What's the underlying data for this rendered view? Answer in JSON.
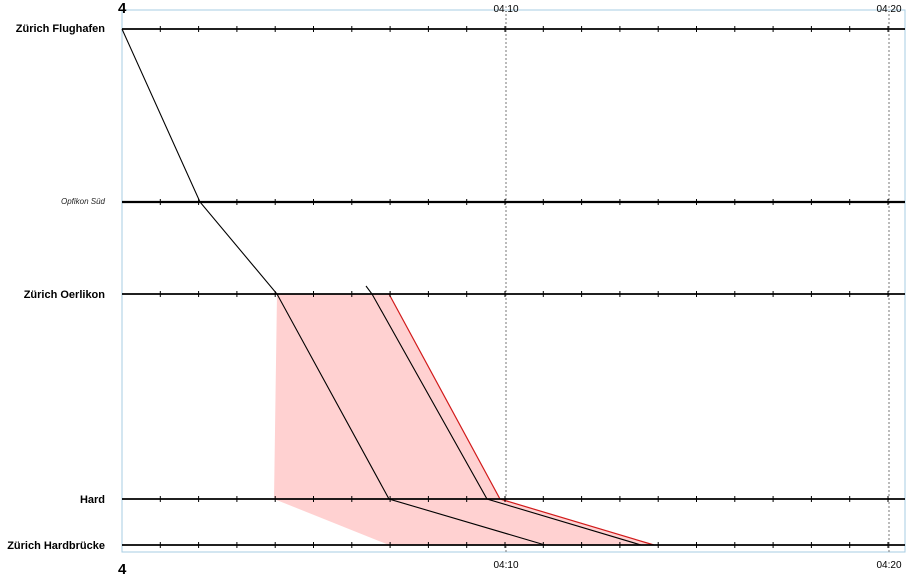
{
  "line_number": "4",
  "stations": [
    {
      "name": "Zürich Flughafen",
      "minor": false
    },
    {
      "name": "Opfikon Süd",
      "minor": true
    },
    {
      "name": "Zürich Oerlikon",
      "minor": false
    },
    {
      "name": "Hard",
      "minor": false
    },
    {
      "name": "Zürich Hardbrücke",
      "minor": false
    }
  ],
  "time_labels": [
    "04:10",
    "04:20"
  ],
  "colors": {
    "plot_border": "#a7cde3",
    "track": "#000000",
    "gridline": "#777777",
    "buffer_fill": "#ffd1d1",
    "buffer_edge": "#d11a1a",
    "path": "#000000"
  }
}
